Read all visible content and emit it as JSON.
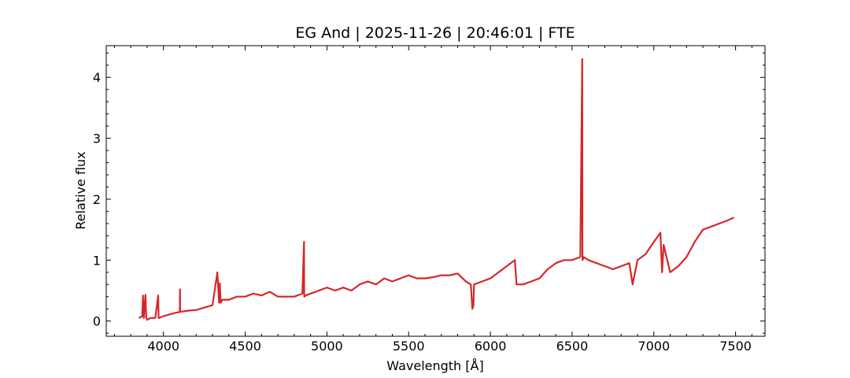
{
  "chart_data": {
    "type": "line",
    "title": "EG And | 2025-11-26 | 20:46:01 | FTE",
    "xlabel": "Wavelength [Å]",
    "ylabel": "Relative flux",
    "xlim": [
      3650,
      7680
    ],
    "ylim": [
      -0.25,
      4.52
    ],
    "xticks": [
      4000,
      4500,
      5000,
      5500,
      6000,
      6500,
      7000,
      7500
    ],
    "yticks": [
      0,
      1,
      2,
      3,
      4
    ],
    "grid": false,
    "series": [
      {
        "color": "#d62728",
        "x": [
          3850,
          3870,
          3875,
          3880,
          3890,
          3895,
          3900,
          3920,
          3950,
          3968,
          3970,
          3972,
          4000,
          4050,
          4100,
          4101,
          4102,
          4150,
          4200,
          4250,
          4300,
          4330,
          4340,
          4345,
          4350,
          4360,
          4400,
          4450,
          4500,
          4550,
          4600,
          4650,
          4700,
          4750,
          4800,
          4850,
          4860,
          4861,
          4862,
          4870,
          4900,
          4950,
          5000,
          5050,
          5100,
          5150,
          5200,
          5250,
          5300,
          5350,
          5400,
          5450,
          5500,
          5550,
          5600,
          5650,
          5700,
          5750,
          5800,
          5850,
          5880,
          5890,
          5896,
          5900,
          5950,
          6000,
          6050,
          6100,
          6150,
          6160,
          6200,
          6250,
          6300,
          6350,
          6400,
          6450,
          6500,
          6550,
          6562,
          6563,
          6564,
          6570,
          6600,
          6650,
          6700,
          6750,
          6800,
          6850,
          6870,
          6900,
          6950,
          7000,
          7040,
          7050,
          7060,
          7100,
          7150,
          7200,
          7250,
          7300,
          7350,
          7400,
          7450,
          7490
        ],
        "y": [
          0.05,
          0.08,
          0.42,
          0.05,
          0.43,
          0.05,
          0.02,
          0.05,
          0.05,
          0.42,
          0.05,
          0.05,
          0.08,
          0.12,
          0.15,
          0.52,
          0.15,
          0.17,
          0.18,
          0.22,
          0.26,
          0.8,
          0.3,
          0.62,
          0.3,
          0.35,
          0.35,
          0.4,
          0.4,
          0.45,
          0.42,
          0.48,
          0.4,
          0.4,
          0.4,
          0.45,
          1.3,
          0.45,
          0.4,
          0.42,
          0.45,
          0.5,
          0.55,
          0.5,
          0.55,
          0.5,
          0.6,
          0.65,
          0.6,
          0.7,
          0.65,
          0.7,
          0.75,
          0.7,
          0.7,
          0.72,
          0.75,
          0.75,
          0.78,
          0.65,
          0.6,
          0.2,
          0.25,
          0.6,
          0.65,
          0.7,
          0.8,
          0.9,
          1.0,
          0.6,
          0.6,
          0.65,
          0.7,
          0.85,
          0.95,
          1.0,
          1.0,
          1.05,
          4.3,
          1.1,
          1.0,
          1.05,
          1.0,
          0.95,
          0.9,
          0.85,
          0.9,
          0.95,
          0.6,
          1.0,
          1.1,
          1.3,
          1.45,
          0.8,
          1.25,
          0.8,
          0.9,
          1.05,
          1.3,
          1.5,
          1.55,
          1.6,
          1.65,
          1.7
        ]
      }
    ]
  }
}
